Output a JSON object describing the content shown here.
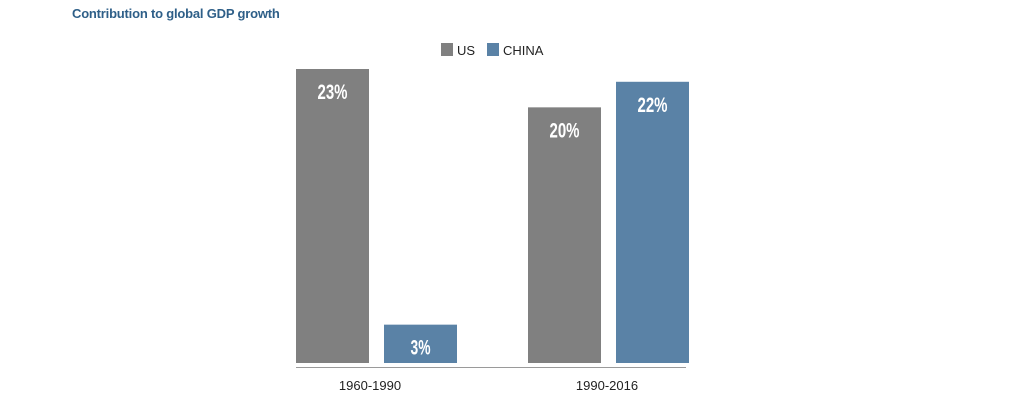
{
  "chart_data": {
    "type": "bar",
    "title": "Contribution to global GDP growth",
    "categories": [
      "1960-1990",
      "1990-2016"
    ],
    "series": [
      {
        "name": "US",
        "values": [
          23,
          20
        ],
        "labels": [
          "23%",
          "20%"
        ],
        "color": "#808080"
      },
      {
        "name": "CHINA",
        "values": [
          3,
          22
        ],
        "labels": [
          "3%",
          "22%"
        ],
        "color": "#5a82a6"
      }
    ],
    "unit": "%",
    "ylim": [
      0,
      23
    ],
    "xlabel": "",
    "ylabel": "",
    "grid": false,
    "legend_position": "top-center"
  },
  "colors": {
    "title": "#2e5f88",
    "axis": "#9a9a9a",
    "data_label": "#ffffff"
  }
}
